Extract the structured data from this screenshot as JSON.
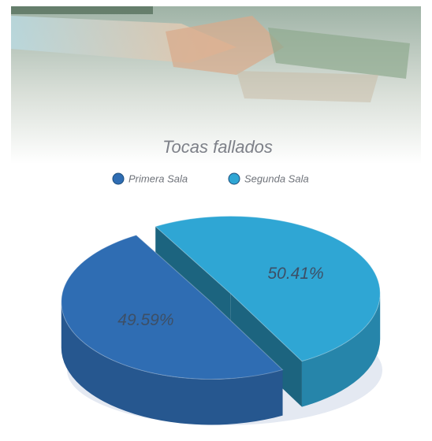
{
  "chart_data": {
    "type": "pie",
    "title": "Tocas fallados",
    "categories": [
      "Primera Sala",
      "Segunda Sala"
    ],
    "values": [
      49.59,
      50.41
    ],
    "value_labels": [
      "49.59%",
      "50.41%"
    ],
    "colors": [
      "#2f6db3",
      "#2fa6d4"
    ]
  }
}
